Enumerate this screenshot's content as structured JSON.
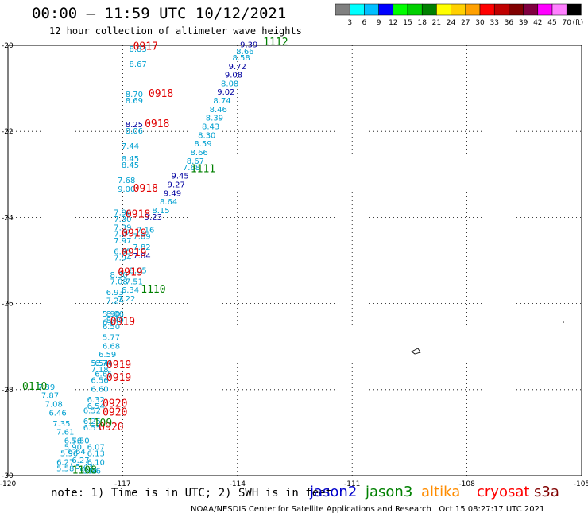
{
  "header": {
    "title": "00:00 – 11:59 UTC 10/12/2021",
    "subtitle": "12 hour collection of altimeter wave heights"
  },
  "colorbar": {
    "unit_label": "(ft)",
    "ticks": [
      "3",
      "6",
      "9",
      "12",
      "15",
      "18",
      "21",
      "24",
      "27",
      "30",
      "33",
      "36",
      "39",
      "42",
      "45",
      "70"
    ],
    "colors": [
      "#808080",
      "#00ffff",
      "#00bfff",
      "#0000ff",
      "#00ff00",
      "#00d000",
      "#008000",
      "#ffff00",
      "#ffd000",
      "#ffa000",
      "#ff0000",
      "#c00000",
      "#800000",
      "#800040",
      "#ff00ff",
      "#ff80ff",
      "#000000"
    ]
  },
  "footer": {
    "note": "note: 1) Time is in UTC; 2) SWH is in feet",
    "credit": "NOAA/NESDIS Center for Satellite Applications and Research   Oct 15 08:27:17 UTC 2021",
    "missions": [
      {
        "name": "jason2",
        "color": "#0000cc"
      },
      {
        "name": "jason3",
        "color": "#008000"
      },
      {
        "name": "altika",
        "color": "#ff8c00"
      },
      {
        "name": "cryosat",
        "color": "#ff0000"
      },
      {
        "name": "s3a",
        "color": "#800000"
      }
    ]
  },
  "colors": {
    "swh_cyan": "#00a0d0",
    "swh_blue": "#0000a0",
    "time_red": "#e00000",
    "time_green": "#008000"
  },
  "chart_data": {
    "type": "scatter",
    "title": "00:00 – 11:59 UTC 10/12/2021",
    "xlabel": "",
    "ylabel": "",
    "xlim": [
      -120,
      -105
    ],
    "ylim": [
      -30,
      -20
    ],
    "x_ticks": [
      "-120",
      "-117",
      "-114",
      "-111",
      "-108",
      "-105"
    ],
    "y_ticks": [
      "-20",
      "-22",
      "-24",
      "-26",
      "-28",
      "-30"
    ],
    "grid": true,
    "swh_labels": [
      {
        "lon": -116.6,
        "lat": -20.15,
        "text": "8.83",
        "c": "cyan"
      },
      {
        "lon": -116.6,
        "lat": -20.5,
        "text": "8.67",
        "c": "cyan"
      },
      {
        "lon": -116.7,
        "lat": -21.2,
        "text": "8.70",
        "c": "cyan"
      },
      {
        "lon": -116.7,
        "lat": -21.35,
        "text": "8.69",
        "c": "cyan"
      },
      {
        "lon": -116.7,
        "lat": -21.9,
        "text": "8.25",
        "c": "blue"
      },
      {
        "lon": -116.7,
        "lat": -22.05,
        "text": "8.06",
        "c": "cyan"
      },
      {
        "lon": -116.8,
        "lat": -22.4,
        "text": "7.44",
        "c": "cyan"
      },
      {
        "lon": -116.8,
        "lat": -22.7,
        "text": "8.45",
        "c": "cyan"
      },
      {
        "lon": -116.8,
        "lat": -22.85,
        "text": "8.45",
        "c": "cyan"
      },
      {
        "lon": -116.9,
        "lat": -23.2,
        "text": "7.68",
        "c": "cyan"
      },
      {
        "lon": -116.9,
        "lat": -23.4,
        "text": "9.00",
        "c": "cyan"
      },
      {
        "lon": -117.0,
        "lat": -23.95,
        "text": "7.96",
        "c": "cyan"
      },
      {
        "lon": -117.0,
        "lat": -24.1,
        "text": "7.30",
        "c": "cyan"
      },
      {
        "lon": -117.0,
        "lat": -24.3,
        "text": "7.39",
        "c": "cyan"
      },
      {
        "lon": -117.0,
        "lat": -24.45,
        "text": "7.04",
        "c": "cyan"
      },
      {
        "lon": -117.0,
        "lat": -24.6,
        "text": "7.97",
        "c": "cyan"
      },
      {
        "lon": -117.0,
        "lat": -24.85,
        "text": "6.95",
        "c": "cyan"
      },
      {
        "lon": -117.0,
        "lat": -25.0,
        "text": "7.94",
        "c": "cyan"
      },
      {
        "lon": -117.1,
        "lat": -25.4,
        "text": "8.30",
        "c": "cyan"
      },
      {
        "lon": -117.1,
        "lat": -25.55,
        "text": "7.08",
        "c": "cyan"
      },
      {
        "lon": -117.2,
        "lat": -25.8,
        "text": "6.93",
        "c": "cyan"
      },
      {
        "lon": -117.2,
        "lat": -26.0,
        "text": "7.24",
        "c": "cyan"
      },
      {
        "lon": -117.3,
        "lat": -26.3,
        "text": "5.90",
        "c": "cyan"
      },
      {
        "lon": -117.3,
        "lat": -26.5,
        "text": "6.01",
        "c": "cyan"
      },
      {
        "lon": -117.3,
        "lat": -26.6,
        "text": "6.50",
        "c": "cyan"
      },
      {
        "lon": -117.6,
        "lat": -27.45,
        "text": "5.54",
        "c": "cyan"
      },
      {
        "lon": -117.6,
        "lat": -27.6,
        "text": "7.18",
        "c": "cyan"
      },
      {
        "lon": -117.6,
        "lat": -27.85,
        "text": "6.56",
        "c": "cyan"
      },
      {
        "lon": -117.6,
        "lat": -28.05,
        "text": "6.60",
        "c": "cyan"
      },
      {
        "lon": -117.7,
        "lat": -28.3,
        "text": "6.32",
        "c": "cyan"
      },
      {
        "lon": -117.7,
        "lat": -28.45,
        "text": "6.54",
        "c": "cyan"
      },
      {
        "lon": -117.8,
        "lat": -28.55,
        "text": "6.52",
        "c": "cyan"
      },
      {
        "lon": -117.8,
        "lat": -28.8,
        "text": "6.25",
        "c": "cyan"
      },
      {
        "lon": -117.8,
        "lat": -28.95,
        "text": "6.55",
        "c": "cyan"
      },
      {
        "lon": -118.1,
        "lat": -29.25,
        "text": "5.50",
        "c": "cyan"
      },
      {
        "lon": -118.3,
        "lat": -29.4,
        "text": "5.90",
        "c": "cyan"
      },
      {
        "lon": -118.4,
        "lat": -29.55,
        "text": "5.96",
        "c": "cyan"
      },
      {
        "lon": -118.5,
        "lat": -29.75,
        "text": "6.27",
        "c": "cyan"
      },
      {
        "lon": -118.5,
        "lat": -29.9,
        "text": "5.58",
        "c": "cyan"
      },
      {
        "lon": -119.0,
        "lat": -28.0,
        "text": "7.39",
        "c": "cyan"
      },
      {
        "lon": -118.9,
        "lat": -28.2,
        "text": "7.87",
        "c": "cyan"
      },
      {
        "lon": -118.8,
        "lat": -28.4,
        "text": "7.08",
        "c": "cyan"
      },
      {
        "lon": -118.7,
        "lat": -28.6,
        "text": "6.46",
        "c": "cyan"
      },
      {
        "lon": -118.6,
        "lat": -28.85,
        "text": "7.35",
        "c": "cyan"
      },
      {
        "lon": -118.5,
        "lat": -29.05,
        "text": "7.61",
        "c": "cyan"
      },
      {
        "lon": -118.3,
        "lat": -29.25,
        "text": "6.76",
        "c": "cyan"
      },
      {
        "lon": -118.2,
        "lat": -29.5,
        "text": "6.64",
        "c": "cyan"
      },
      {
        "lon": -118.1,
        "lat": -29.7,
        "text": "6.27",
        "c": "cyan"
      },
      {
        "lon": -118.0,
        "lat": -29.85,
        "text": "5.43",
        "c": "cyan"
      },
      {
        "lon": -117.9,
        "lat": -29.95,
        "text": "5.48",
        "c": "cyan"
      },
      {
        "lon": -117.8,
        "lat": -29.95,
        "text": "5.96",
        "c": "cyan"
      },
      {
        "lon": -117.7,
        "lat": -29.4,
        "text": "6.07",
        "c": "cyan"
      },
      {
        "lon": -117.7,
        "lat": -29.55,
        "text": "6.13",
        "c": "cyan"
      },
      {
        "lon": -117.7,
        "lat": -29.75,
        "text": "6.10",
        "c": "cyan"
      },
      {
        "lon": -117.2,
        "lat": -26.3,
        "text": "8.06",
        "c": "cyan"
      },
      {
        "lon": -117.2,
        "lat": -26.45,
        "text": "8.49",
        "c": "cyan"
      },
      {
        "lon": -117.3,
        "lat": -26.85,
        "text": "5.77",
        "c": "cyan"
      },
      {
        "lon": -117.3,
        "lat": -27.05,
        "text": "6.68",
        "c": "cyan"
      },
      {
        "lon": -117.4,
        "lat": -27.25,
        "text": "6.59",
        "c": "cyan"
      },
      {
        "lon": -117.5,
        "lat": -27.45,
        "text": "6.74",
        "c": "cyan"
      },
      {
        "lon": -117.5,
        "lat": -27.7,
        "text": "6.65",
        "c": "cyan"
      },
      {
        "lon": -116.6,
        "lat": -25.3,
        "text": "8.05",
        "c": "cyan"
      },
      {
        "lon": -116.7,
        "lat": -25.55,
        "text": "7.51",
        "c": "cyan"
      },
      {
        "lon": -116.8,
        "lat": -25.75,
        "text": "6.34",
        "c": "cyan"
      },
      {
        "lon": -116.9,
        "lat": -25.95,
        "text": "7.22",
        "c": "cyan"
      },
      {
        "lon": -116.4,
        "lat": -24.35,
        "text": "7.16",
        "c": "cyan"
      },
      {
        "lon": -116.5,
        "lat": -24.5,
        "text": "7.89",
        "c": "cyan"
      },
      {
        "lon": -116.5,
        "lat": -24.75,
        "text": "7.82",
        "c": "cyan"
      },
      {
        "lon": -116.5,
        "lat": -24.95,
        "text": "7.84",
        "c": "blue"
      },
      {
        "lon": -116.2,
        "lat": -24.05,
        "text": "9.23",
        "c": "blue"
      },
      {
        "lon": -116.0,
        "lat": -23.9,
        "text": "8.15",
        "c": "cyan"
      },
      {
        "lon": -115.8,
        "lat": -23.7,
        "text": "8.64",
        "c": "cyan"
      },
      {
        "lon": -115.7,
        "lat": -23.5,
        "text": "9.49",
        "c": "blue"
      },
      {
        "lon": -115.6,
        "lat": -23.3,
        "text": "9.27",
        "c": "blue"
      },
      {
        "lon": -115.5,
        "lat": -23.1,
        "text": "9.45",
        "c": "blue"
      },
      {
        "lon": -115.2,
        "lat": -22.9,
        "text": "7.68",
        "c": "cyan"
      },
      {
        "lon": -115.1,
        "lat": -22.75,
        "text": "8.67",
        "c": "cyan"
      },
      {
        "lon": -115.0,
        "lat": -22.55,
        "text": "8.66",
        "c": "cyan"
      },
      {
        "lon": -114.9,
        "lat": -22.35,
        "text": "8.59",
        "c": "cyan"
      },
      {
        "lon": -114.8,
        "lat": -22.15,
        "text": "8.30",
        "c": "cyan"
      },
      {
        "lon": -114.7,
        "lat": -21.95,
        "text": "8.43",
        "c": "cyan"
      },
      {
        "lon": -114.6,
        "lat": -21.75,
        "text": "8.39",
        "c": "cyan"
      },
      {
        "lon": -114.5,
        "lat": -21.55,
        "text": "8.46",
        "c": "cyan"
      },
      {
        "lon": -114.4,
        "lat": -21.35,
        "text": "8.74",
        "c": "cyan"
      },
      {
        "lon": -114.3,
        "lat": -21.15,
        "text": "9.02",
        "c": "blue"
      },
      {
        "lon": -114.2,
        "lat": -20.95,
        "text": "8.08",
        "c": "cyan"
      },
      {
        "lon": -114.1,
        "lat": -20.75,
        "text": "9.08",
        "c": "blue"
      },
      {
        "lon": -114.0,
        "lat": -20.55,
        "text": "9.72",
        "c": "blue"
      },
      {
        "lon": -113.9,
        "lat": -20.35,
        "text": "8.58",
        "c": "cyan"
      },
      {
        "lon": -113.8,
        "lat": -20.2,
        "text": "8.66",
        "c": "cyan"
      },
      {
        "lon": -113.7,
        "lat": -20.05,
        "text": "9.39",
        "c": "blue"
      }
    ],
    "time_labels": [
      {
        "lon": -116.4,
        "lat": -20.1,
        "text": "0917",
        "c": "red"
      },
      {
        "lon": -116.0,
        "lat": -21.2,
        "text": "0918",
        "c": "red"
      },
      {
        "lon": -116.1,
        "lat": -21.9,
        "text": "0918",
        "c": "red"
      },
      {
        "lon": -116.4,
        "lat": -23.4,
        "text": "0918",
        "c": "red"
      },
      {
        "lon": -116.6,
        "lat": -24.0,
        "text": "0918",
        "c": "red"
      },
      {
        "lon": -116.7,
        "lat": -24.45,
        "text": "0919",
        "c": "red"
      },
      {
        "lon": -116.7,
        "lat": -24.9,
        "text": "0919",
        "c": "red"
      },
      {
        "lon": -116.8,
        "lat": -25.35,
        "text": "0919",
        "c": "red"
      },
      {
        "lon": -117.0,
        "lat": -26.5,
        "text": "0919",
        "c": "red"
      },
      {
        "lon": -117.1,
        "lat": -27.5,
        "text": "0919",
        "c": "red"
      },
      {
        "lon": -117.1,
        "lat": -27.8,
        "text": "0919",
        "c": "red"
      },
      {
        "lon": -117.2,
        "lat": -28.4,
        "text": "0920",
        "c": "red"
      },
      {
        "lon": -117.2,
        "lat": -28.6,
        "text": "0920",
        "c": "red"
      },
      {
        "lon": -117.3,
        "lat": -28.95,
        "text": "0920",
        "c": "red"
      },
      {
        "lon": -113.0,
        "lat": -20.0,
        "text": "1112",
        "c": "green"
      },
      {
        "lon": -114.9,
        "lat": -22.95,
        "text": "1111",
        "c": "green"
      },
      {
        "lon": -116.2,
        "lat": -25.75,
        "text": "1110",
        "c": "green"
      },
      {
        "lon": -117.6,
        "lat": -28.85,
        "text": "1109",
        "c": "green"
      },
      {
        "lon": -118.0,
        "lat": -29.95,
        "text": "1108",
        "c": "green"
      },
      {
        "lon": -119.3,
        "lat": -28.0,
        "text": "0110",
        "c": "green"
      }
    ]
  }
}
